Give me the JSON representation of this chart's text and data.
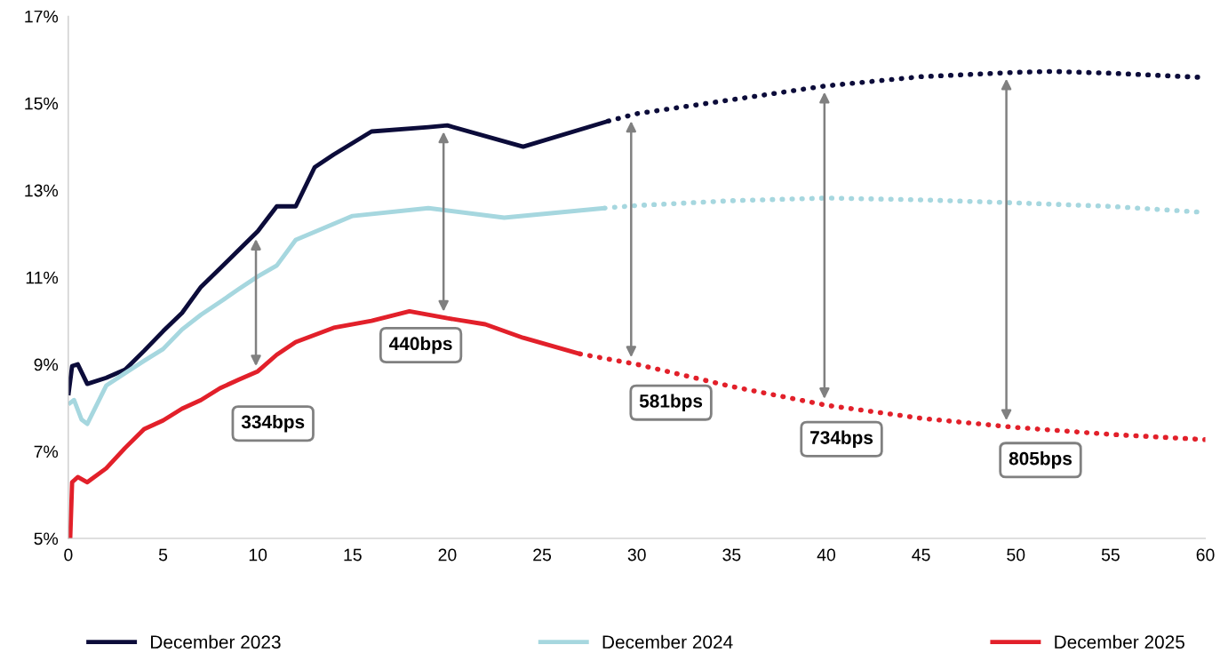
{
  "chart_data": {
    "type": "line",
    "xlim": [
      0,
      60
    ],
    "ylim": [
      5,
      17
    ],
    "xticks": [
      0,
      5,
      10,
      15,
      20,
      25,
      30,
      35,
      40,
      45,
      50,
      55,
      60
    ],
    "yticks": [
      {
        "value": 5,
        "label": "5%"
      },
      {
        "value": 7,
        "label": "7%"
      },
      {
        "value": 9,
        "label": "9%"
      },
      {
        "value": 11,
        "label": "11%"
      },
      {
        "value": 13,
        "label": "13%"
      },
      {
        "value": 15,
        "label": "15%"
      },
      {
        "value": 17,
        "label": "17%"
      }
    ],
    "grid": false,
    "legend": "bottom",
    "marker": "none",
    "series": [
      {
        "name": "December 2023",
        "color": "#0c0c3a",
        "line_style": "solid",
        "x": [
          0,
          0.2,
          0.5,
          1,
          2,
          3,
          4,
          5,
          6,
          7,
          8,
          9,
          10,
          11,
          12,
          13,
          14,
          16,
          19,
          20,
          24,
          28.5
        ],
        "values": [
          8.29,
          8.96,
          9.0,
          8.55,
          8.69,
          8.88,
          9.31,
          9.76,
          10.18,
          10.78,
          11.2,
          11.63,
          12.06,
          12.63,
          12.63,
          13.53,
          13.82,
          14.35,
          14.45,
          14.49,
          14.0,
          14.59
        ]
      },
      {
        "color": "#0c0c3a",
        "line_style": "dotted",
        "x": [
          28.5,
          30,
          35,
          40,
          45,
          50,
          52,
          55,
          60
        ],
        "values": [
          14.59,
          14.76,
          15.08,
          15.4,
          15.61,
          15.71,
          15.73,
          15.69,
          15.59
        ]
      },
      {
        "name": "December 2024",
        "color": "#a6d7df",
        "line_style": "solid",
        "x": [
          0,
          0.3,
          0.7,
          1,
          2,
          3,
          4,
          5,
          6,
          7,
          8,
          9,
          10,
          11,
          12,
          15,
          19,
          23,
          28.3
        ],
        "values": [
          8.08,
          8.18,
          7.73,
          7.63,
          8.51,
          8.8,
          9.08,
          9.35,
          9.8,
          10.14,
          10.43,
          10.73,
          11.02,
          11.27,
          11.86,
          12.41,
          12.59,
          12.37,
          12.59
        ]
      },
      {
        "color": "#a6d7df",
        "line_style": "dotted",
        "x": [
          28.3,
          30,
          35,
          40,
          45,
          50,
          55,
          60
        ],
        "values": [
          12.59,
          12.65,
          12.76,
          12.82,
          12.78,
          12.71,
          12.63,
          12.49
        ]
      },
      {
        "name": "December 2025",
        "color": "#e2202a",
        "line_style": "solid",
        "x": [
          0.1,
          0.2,
          0.5,
          1,
          2,
          3,
          4,
          5,
          6,
          7,
          8,
          9,
          10,
          11,
          12,
          14,
          16,
          18,
          20,
          22,
          24,
          27
        ],
        "values": [
          5.0,
          6.29,
          6.41,
          6.29,
          6.61,
          7.08,
          7.51,
          7.71,
          7.98,
          8.18,
          8.45,
          8.65,
          8.84,
          9.22,
          9.51,
          9.84,
          10.0,
          10.22,
          10.06,
          9.92,
          9.61,
          9.24
        ]
      },
      {
        "color": "#e2202a",
        "line_style": "dotted",
        "x": [
          27,
          28,
          30,
          35,
          40,
          45,
          50,
          55,
          60
        ],
        "values": [
          9.24,
          9.16,
          9.0,
          8.49,
          8.06,
          7.76,
          7.55,
          7.39,
          7.27
        ]
      }
    ],
    "annotations": [
      "334bps",
      "440bps",
      "581bps",
      "734bps",
      "805bps"
    ]
  }
}
